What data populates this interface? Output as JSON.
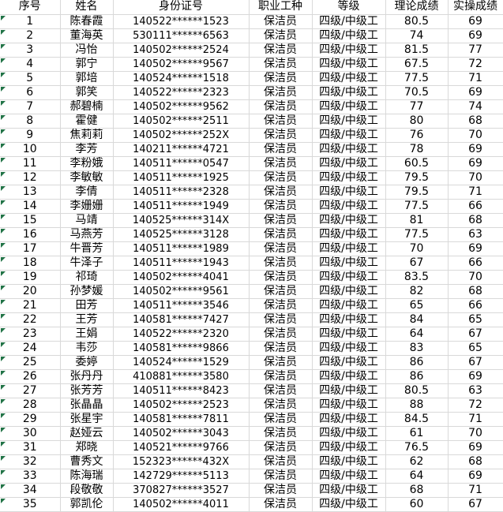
{
  "table": {
    "columns": [
      "序号",
      "姓名",
      "身份证号",
      "职业工种",
      "等级",
      "理论成绩",
      "实操成绩"
    ],
    "rows": [
      [
        1,
        "陈春霞",
        "140522******1523",
        "保洁员",
        "四级/中级工",
        "80.5",
        "69"
      ],
      [
        2,
        "董海英",
        "530111******6563",
        "保洁员",
        "四级/中级工",
        "74",
        "69"
      ],
      [
        3,
        "冯怡",
        "140502******2524",
        "保洁员",
        "四级/中级工",
        "81.5",
        "77"
      ],
      [
        4,
        "郭宁",
        "140502******9567",
        "保洁员",
        "四级/中级工",
        "67.5",
        "72"
      ],
      [
        5,
        "郭培",
        "140524******1518",
        "保洁员",
        "四级/中级工",
        "77.5",
        "71"
      ],
      [
        6,
        "郭笑",
        "140522******2323",
        "保洁员",
        "四级/中级工",
        "70.5",
        "69"
      ],
      [
        7,
        "郝碧楠",
        "140502******9562",
        "保洁员",
        "四级/中级工",
        "77",
        "74"
      ],
      [
        8,
        "霍健",
        "140502******2511",
        "保洁员",
        "四级/中级工",
        "80",
        "68"
      ],
      [
        9,
        "焦莉莉",
        "140502******252X",
        "保洁员",
        "四级/中级工",
        "76",
        "70"
      ],
      [
        10,
        "李芳",
        "140211******4721",
        "保洁员",
        "四级/中级工",
        "78",
        "69"
      ],
      [
        11,
        "李粉娥",
        "140511******0547",
        "保洁员",
        "四级/中级工",
        "60.5",
        "69"
      ],
      [
        12,
        "李敏敏",
        "140511******1925",
        "保洁员",
        "四级/中级工",
        "79.5",
        "70"
      ],
      [
        13,
        "李倩",
        "140511******2328",
        "保洁员",
        "四级/中级工",
        "79.5",
        "71"
      ],
      [
        14,
        "李姗姗",
        "140511******1949",
        "保洁员",
        "四级/中级工",
        "77.5",
        "66"
      ],
      [
        15,
        "马靖",
        "140525******314X",
        "保洁员",
        "四级/中级工",
        "81",
        "68"
      ],
      [
        16,
        "马燕芳",
        "140525******3128",
        "保洁员",
        "四级/中级工",
        "77.5",
        "63"
      ],
      [
        17,
        "牛晋芳",
        "140511******1989",
        "保洁员",
        "四级/中级工",
        "70",
        "69"
      ],
      [
        18,
        "牛泽子",
        "140511******1943",
        "保洁员",
        "四级/中级工",
        "67",
        "66"
      ],
      [
        19,
        "祁琦",
        "140502******4041",
        "保洁员",
        "四级/中级工",
        "83.5",
        "70"
      ],
      [
        20,
        "孙梦媛",
        "140502******9561",
        "保洁员",
        "四级/中级工",
        "82",
        "68"
      ],
      [
        21,
        "田芳",
        "140511******3546",
        "保洁员",
        "四级/中级工",
        "65",
        "66"
      ],
      [
        22,
        "王芳",
        "140581******7427",
        "保洁员",
        "四级/中级工",
        "84",
        "65"
      ],
      [
        23,
        "王娟",
        "140522******2320",
        "保洁员",
        "四级/中级工",
        "64",
        "67"
      ],
      [
        24,
        "韦莎",
        "140581******9866",
        "保洁员",
        "四级/中级工",
        "83",
        "65"
      ],
      [
        25,
        "委婷",
        "140524******1529",
        "保洁员",
        "四级/中级工",
        "86",
        "67"
      ],
      [
        26,
        "张丹丹",
        "410881******3580",
        "保洁员",
        "四级/中级工",
        "86",
        "69"
      ],
      [
        27,
        "张芳芳",
        "140511******8423",
        "保洁员",
        "四级/中级工",
        "80.5",
        "63"
      ],
      [
        28,
        "张晶晶",
        "140502******2523",
        "保洁员",
        "四级/中级工",
        "88",
        "72"
      ],
      [
        29,
        "张星宇",
        "140581******7811",
        "保洁员",
        "四级/中级工",
        "84.5",
        "71"
      ],
      [
        30,
        "赵娅云",
        "140502******3043",
        "保洁员",
        "四级/中级工",
        "61",
        "70"
      ],
      [
        31,
        "郑晓",
        "140521******9766",
        "保洁员",
        "四级/中级工",
        "76.5",
        "69"
      ],
      [
        32,
        "曹秀文",
        "152323******432X",
        "保洁员",
        "四级/中级工",
        "62",
        "68"
      ],
      [
        33,
        "陈海瑞",
        "142729******5113",
        "保洁员",
        "四级/中级工",
        "64",
        "69"
      ],
      [
        34,
        "段敬敬",
        "370827******3527",
        "保洁员",
        "四级/中级工",
        "68",
        "71"
      ],
      [
        35,
        "郭凯伦",
        "140502******4011",
        "保洁员",
        "四级/中级工",
        "60",
        "67"
      ]
    ]
  },
  "icons": {
    "error_indicator": "green-corner-triangle"
  },
  "colors": {
    "grid": "#d9d9d9",
    "text": "#000000",
    "background": "#ffffff",
    "error_indicator": "#217346"
  }
}
